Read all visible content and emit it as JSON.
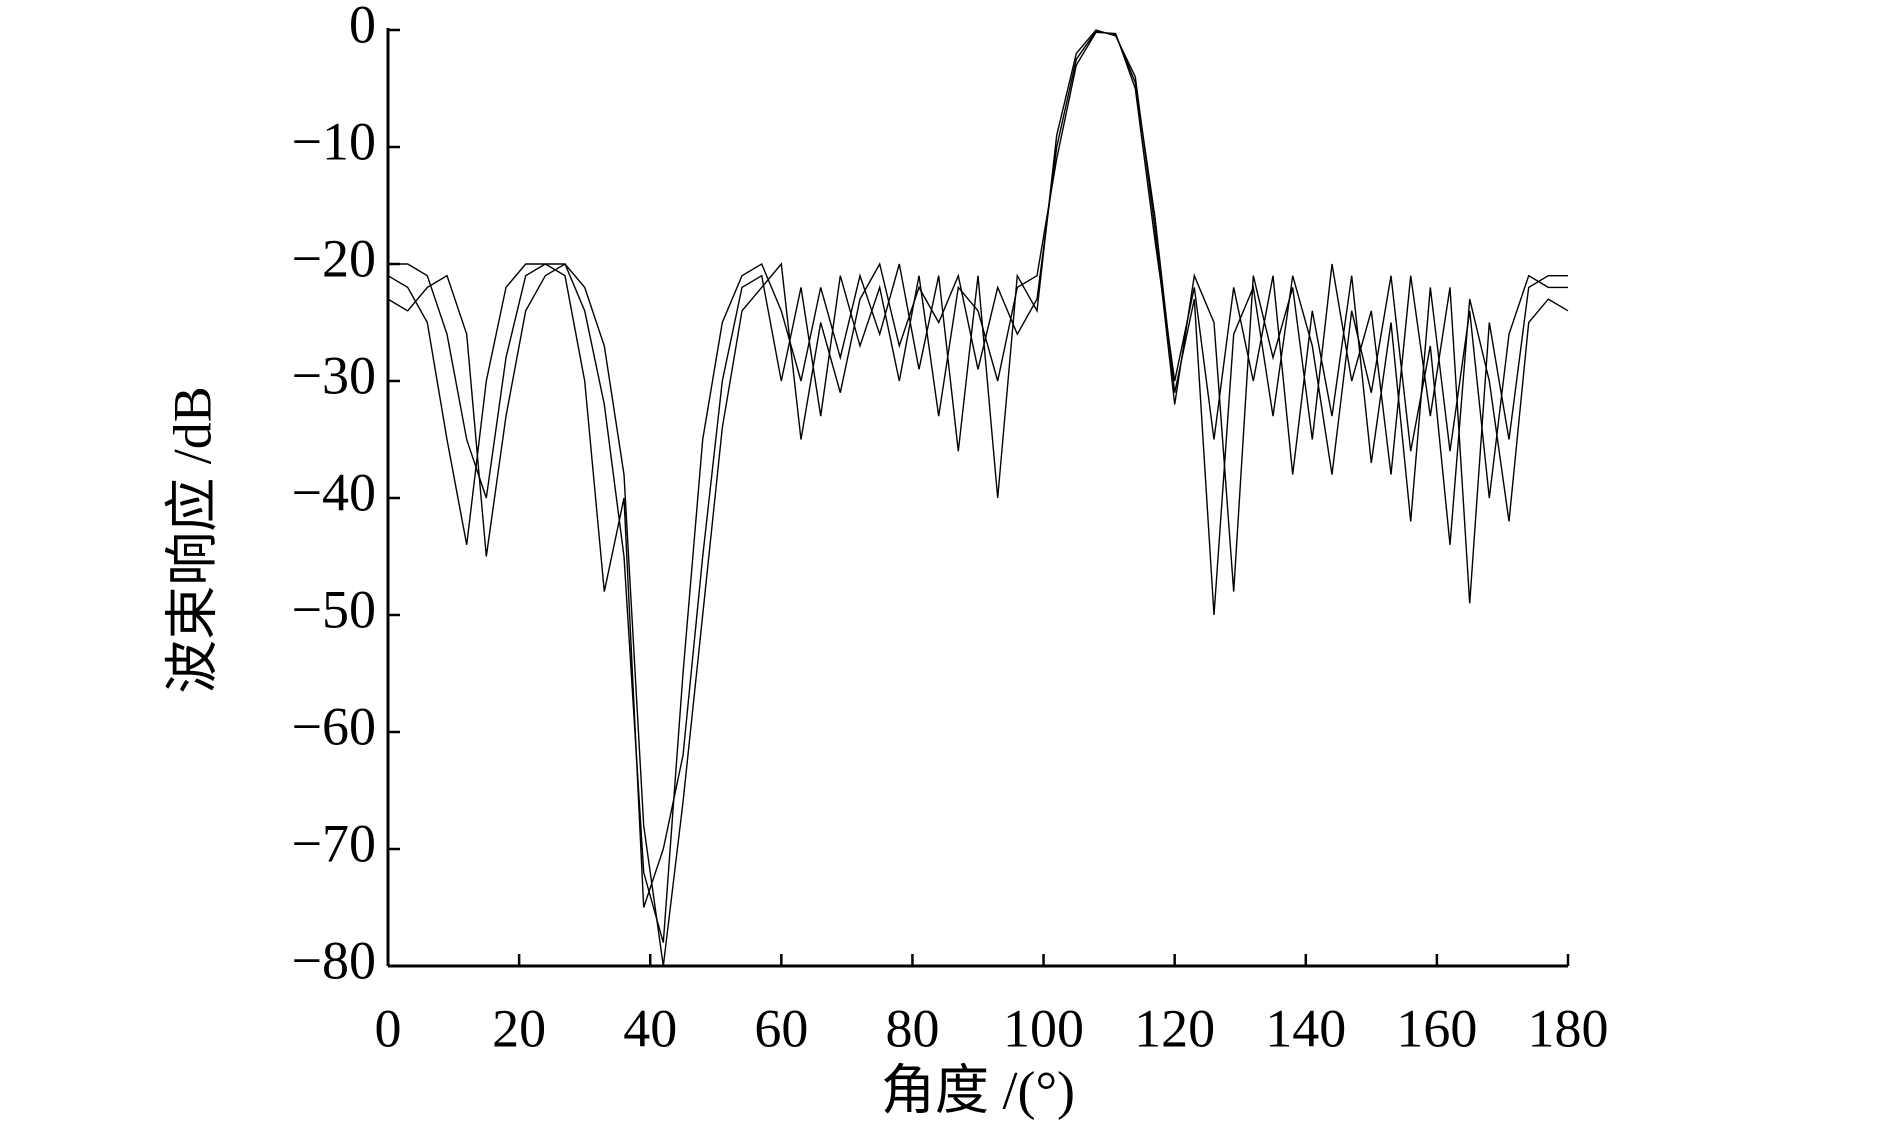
{
  "chart_data": {
    "type": "line",
    "xlabel": "角度 /(°)",
    "ylabel": "波束响应 /dB",
    "x": [
      0,
      3,
      6,
      9,
      12,
      15,
      18,
      21,
      24,
      27,
      30,
      33,
      36,
      39,
      42,
      45,
      48,
      51,
      54,
      57,
      60,
      63,
      66,
      69,
      72,
      75,
      78,
      81,
      84,
      87,
      90,
      93,
      96,
      99,
      102,
      105,
      108,
      111,
      114,
      117,
      120,
      123,
      126,
      129,
      132,
      135,
      138,
      141,
      144,
      147,
      150,
      153,
      156,
      159,
      162,
      165,
      168,
      171,
      174,
      177,
      180
    ],
    "series": [
      {
        "color": "#000000",
        "values": [
          -21,
          -22,
          -25,
          -35,
          -44,
          -30,
          -22,
          -20,
          -20,
          -20,
          -24,
          -32,
          -45,
          -72,
          -78,
          -55,
          -35,
          -25,
          -21,
          -20,
          -24,
          -30,
          -22,
          -28,
          -21,
          -26,
          -20,
          -29,
          -21,
          -36,
          -21,
          -40,
          -21,
          -24,
          -9,
          -2,
          0,
          -0.5,
          -4,
          -17,
          -32,
          -21,
          -25,
          -48,
          -21,
          -28,
          -22,
          -35,
          -20,
          -30,
          -24,
          -38,
          -21,
          -33,
          -22,
          -49,
          -25,
          -35,
          -22,
          -21,
          -21
        ]
      },
      {
        "color": "#000000",
        "values": [
          -20,
          -20,
          -21,
          -26,
          -35,
          -40,
          -28,
          -21,
          -20,
          -21,
          -30,
          -48,
          -40,
          -75,
          -70,
          -62,
          -45,
          -30,
          -22,
          -21,
          -30,
          -22,
          -33,
          -21,
          -27,
          -22,
          -30,
          -21,
          -33,
          -22,
          -24,
          -30,
          -22,
          -21,
          -11,
          -3,
          -0.2,
          -0.3,
          -5,
          -18,
          -30,
          -22,
          -35,
          -22,
          -30,
          -21,
          -38,
          -24,
          -33,
          -21,
          -37,
          -25,
          -42,
          -22,
          -36,
          -24,
          -40,
          -26,
          -21,
          -22,
          -22
        ]
      },
      {
        "color": "#000000",
        "values": [
          -23,
          -24,
          -22,
          -21,
          -26,
          -45,
          -33,
          -24,
          -21,
          -20,
          -22,
          -27,
          -38,
          -68,
          -80,
          -66,
          -50,
          -34,
          -24,
          -22,
          -20,
          -35,
          -25,
          -31,
          -23,
          -20,
          -27,
          -22,
          -25,
          -21,
          -29,
          -22,
          -26,
          -23,
          -10,
          -2.5,
          -0.1,
          -0.4,
          -4.5,
          -16,
          -31,
          -23,
          -50,
          -26,
          -22,
          -33,
          -21,
          -27,
          -38,
          -24,
          -31,
          -21,
          -36,
          -27,
          -44,
          -23,
          -30,
          -42,
          -25,
          -23,
          -24
        ]
      }
    ],
    "xlim": [
      0,
      180
    ],
    "xticks": [
      0,
      20,
      40,
      60,
      80,
      100,
      120,
      140,
      160,
      180
    ],
    "ylim": [
      -80,
      0
    ],
    "yticks": [
      {
        "value": -80,
        "label": "−80"
      },
      {
        "value": -70,
        "label": "−70"
      },
      {
        "value": -60,
        "label": "−60"
      },
      {
        "value": -50,
        "label": "−50"
      },
      {
        "value": -40,
        "label": "−40"
      },
      {
        "value": -30,
        "label": "−30"
      },
      {
        "value": -20,
        "label": "−20"
      },
      {
        "value": -10,
        "label": "−10"
      },
      0
    ],
    "grid": false
  }
}
